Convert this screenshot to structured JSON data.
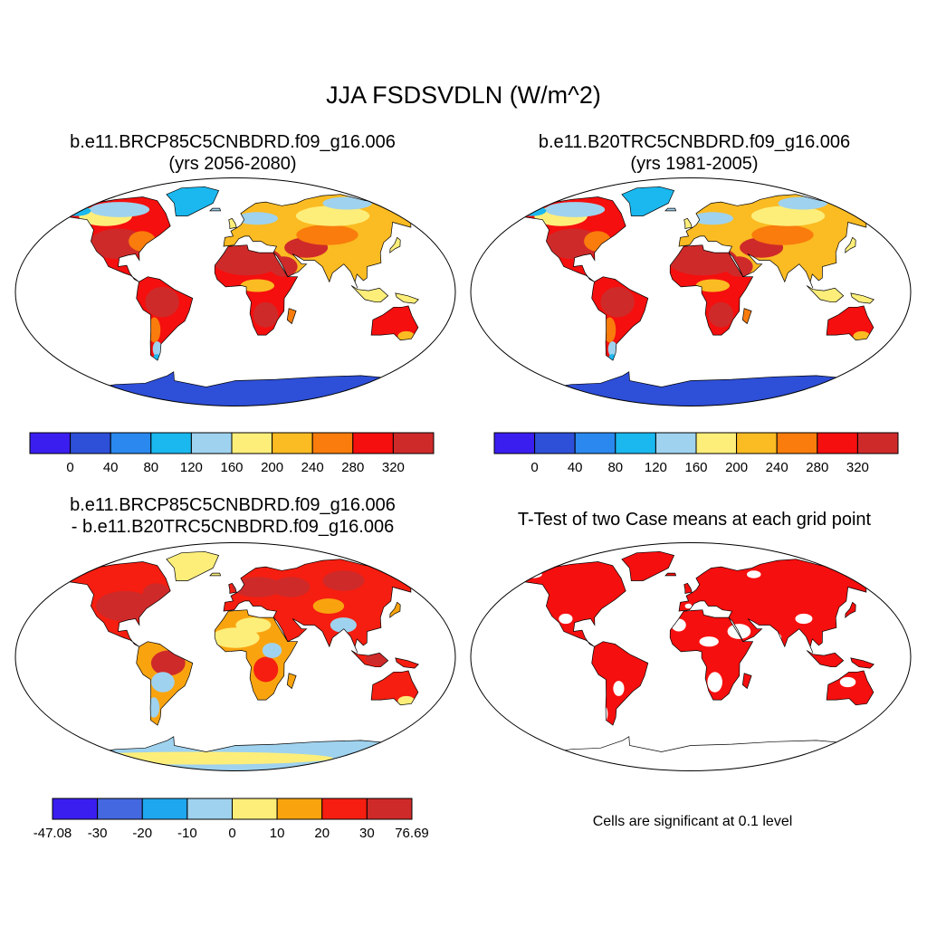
{
  "figure": {
    "title": "JJA FSDSVDLN (W/m^2)"
  },
  "panels": {
    "top_left": {
      "title_line1": "b.e11.BRCP85C5CNBDRD.f09_g16.006",
      "title_line2": "(yrs 2056-2080)"
    },
    "top_right": {
      "title_line1": "b.e11.B20TRC5CNBDRD.f09_g16.006",
      "title_line2": "(yrs 1981-2005)"
    },
    "bottom_left": {
      "title_line1": "b.e11.BRCP85C5CNBDRD.f09_g16.006",
      "title_line2": "- b.e11.B20TRC5CNBDRD.f09_g16.006"
    },
    "bottom_right": {
      "title": "T-Test of two Case means at each grid point",
      "note": "Cells are significant at 0.1 level"
    }
  },
  "colorbars": {
    "absolute": {
      "colors": [
        "#3a1eef",
        "#2e4fd8",
        "#2a88ee",
        "#1ab8ef",
        "#9fd2ee",
        "#fdee7a",
        "#fbbb22",
        "#f97c0c",
        "#f50f0e",
        "#cf2a2a"
      ],
      "labels": [
        "0",
        "40",
        "80",
        "120",
        "160",
        "200",
        "240",
        "280",
        "320"
      ]
    },
    "difference": {
      "colors": [
        "#3a1eef",
        "#4468e0",
        "#1ea6ef",
        "#9fd2ee",
        "#fdee7a",
        "#f9a40f",
        "#f51e10",
        "#cf2a2a"
      ],
      "labels": [
        "-47.08",
        "-30",
        "-20",
        "-10",
        "0",
        "10",
        "20",
        "30",
        "76.69"
      ]
    }
  },
  "map_colors": {
    "ocean": "#ffffff",
    "antarctica_abs": "#2e4fd8",
    "antarctica_diff": "#9fd2ee",
    "significant": "#f50f0e"
  }
}
